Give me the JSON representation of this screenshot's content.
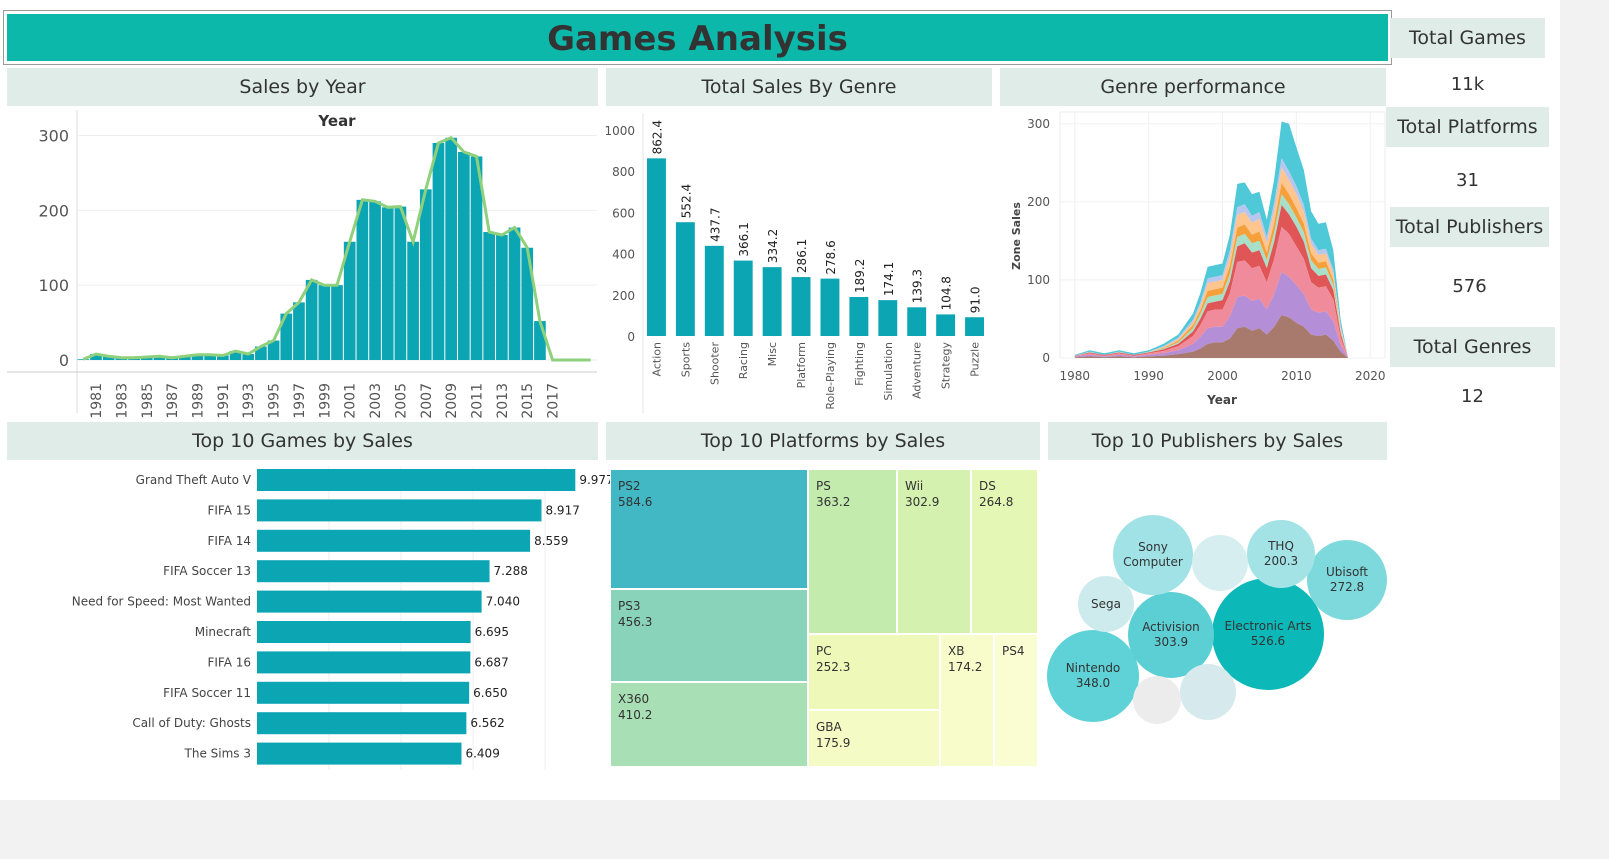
{
  "title": "Games Analysis",
  "kpis": [
    {
      "label": "Total Games",
      "value": "11k"
    },
    {
      "label": "Total Platforms",
      "value": "31"
    },
    {
      "label": "Total Publishers",
      "value": "576"
    },
    {
      "label": "Total Genres",
      "value": "12"
    }
  ],
  "colors": {
    "teal": "#0ca5b4",
    "line": "#8fd07c",
    "header": "#0cb8aa",
    "panel": "#dfece8"
  },
  "chart_data": [
    {
      "id": "sales_by_year",
      "type": "bar",
      "title": "Sales by Year",
      "header": "Year",
      "years": [
        1980,
        1981,
        1982,
        1983,
        1984,
        1985,
        1986,
        1987,
        1988,
        1989,
        1990,
        1991,
        1992,
        1993,
        1994,
        1995,
        1996,
        1997,
        1998,
        1999,
        2000,
        2001,
        2002,
        2003,
        2004,
        2005,
        2006,
        2007,
        2008,
        2009,
        2010,
        2011,
        2012,
        2013,
        2014,
        2015,
        2016,
        2017,
        2018,
        2019,
        2020
      ],
      "values": [
        1,
        8,
        5,
        3,
        3,
        4,
        5,
        3,
        5,
        7,
        7,
        6,
        12,
        8,
        18,
        26,
        62,
        77,
        107,
        100,
        100,
        158,
        214,
        212,
        204,
        205,
        158,
        228,
        290,
        297,
        278,
        272,
        171,
        167,
        177,
        150,
        52,
        0,
        0,
        0,
        0
      ],
      "tick_labels": [
        "1981",
        "1983",
        "1985",
        "1987",
        "1989",
        "1991",
        "1993",
        "1995",
        "1997",
        "1999",
        "2001",
        "2003",
        "2005",
        "2007",
        "2009",
        "2011",
        "2013",
        "2015",
        "2017"
      ],
      "y_ticks": [
        "0",
        "100",
        "200",
        "300"
      ],
      "ylim": [
        0,
        310
      ]
    },
    {
      "id": "sales_by_genre",
      "type": "bar",
      "title": "Total Sales By Genre",
      "categories": [
        "Action",
        "Sports",
        "Shooter",
        "Racing",
        "Misc",
        "Platform",
        "Role-Playing",
        "Fighting",
        "Simulation",
        "Adventure",
        "Strategy",
        "Puzzle"
      ],
      "values": [
        862.4,
        552.4,
        437.7,
        366.1,
        334.2,
        286.1,
        278.6,
        189.2,
        174.1,
        139.3,
        104.8,
        91.0
      ],
      "labels": [
        "862.4",
        "552.4",
        "437.7",
        "366.1",
        "334.2",
        "286.1",
        "278.6",
        "189.2",
        "174.1",
        "139.3",
        "104.8",
        "91.0"
      ],
      "y_ticks": [
        "0",
        "200",
        "400",
        "600",
        "800",
        "1000"
      ],
      "ylim": [
        0,
        1000
      ]
    },
    {
      "id": "genre_performance",
      "type": "area",
      "title": "Genre performance",
      "xlabel": "Year",
      "ylabel": "Zone Sales",
      "x_ticks": [
        "1980",
        "1990",
        "2000",
        "2010",
        "2020"
      ],
      "y_ticks": [
        "0",
        "100",
        "200",
        "300"
      ],
      "xlim": [
        1978,
        2022
      ],
      "ylim": [
        0,
        310
      ],
      "years": [
        1980,
        1982,
        1984,
        1986,
        1988,
        1990,
        1992,
        1994,
        1996,
        1997,
        1998,
        1999,
        2000,
        2001,
        2002,
        2003,
        2004,
        2005,
        2006,
        2007,
        2008,
        2009,
        2010,
        2011,
        2012,
        2013,
        2014,
        2015,
        2016,
        2017
      ],
      "series": [
        {
          "color": "#a87a6e",
          "values": [
            1,
            2,
            1,
            2,
            1,
            2,
            3,
            5,
            8,
            12,
            18,
            20,
            20,
            25,
            38,
            40,
            35,
            38,
            30,
            40,
            55,
            52,
            45,
            40,
            30,
            28,
            30,
            22,
            8,
            0
          ]
        },
        {
          "color": "#b48ed6",
          "values": [
            1,
            2,
            1,
            2,
            1,
            2,
            3,
            5,
            10,
            15,
            20,
            20,
            20,
            28,
            40,
            40,
            38,
            38,
            32,
            42,
            55,
            52,
            48,
            42,
            32,
            30,
            30,
            25,
            8,
            0
          ]
        },
        {
          "color": "#f08b9b",
          "values": [
            1,
            2,
            1,
            2,
            1,
            2,
            3,
            5,
            10,
            15,
            22,
            22,
            22,
            30,
            45,
            45,
            42,
            42,
            35,
            45,
            58,
            55,
            50,
            45,
            35,
            32,
            32,
            28,
            10,
            0
          ]
        },
        {
          "color": "#e05555",
          "values": [
            0,
            1,
            1,
            1,
            1,
            1,
            2,
            3,
            6,
            8,
            10,
            10,
            12,
            15,
            20,
            22,
            20,
            20,
            18,
            22,
            28,
            25,
            25,
            22,
            18,
            15,
            15,
            12,
            5,
            0
          ]
        },
        {
          "color": "#a8dfc8",
          "values": [
            0,
            1,
            0,
            1,
            0,
            1,
            1,
            2,
            4,
            6,
            8,
            8,
            8,
            10,
            12,
            12,
            12,
            12,
            10,
            12,
            14,
            13,
            12,
            12,
            10,
            9,
            9,
            7,
            3,
            0
          ]
        },
        {
          "color": "#f5a03a",
          "values": [
            0,
            0,
            0,
            0,
            0,
            0,
            1,
            2,
            4,
            5,
            8,
            8,
            8,
            10,
            12,
            12,
            11,
            12,
            10,
            12,
            14,
            13,
            12,
            11,
            9,
            8,
            8,
            6,
            2,
            0
          ]
        },
        {
          "color": "#ffc58f",
          "values": [
            0,
            0,
            0,
            0,
            0,
            0,
            1,
            2,
            4,
            6,
            10,
            10,
            10,
            12,
            16,
            16,
            15,
            16,
            12,
            16,
            20,
            18,
            18,
            15,
            12,
            10,
            10,
            8,
            3,
            0
          ]
        },
        {
          "color": "#b7c6ee",
          "values": [
            0,
            0,
            0,
            0,
            0,
            0,
            1,
            2,
            3,
            4,
            6,
            6,
            6,
            8,
            10,
            10,
            9,
            9,
            8,
            10,
            12,
            11,
            10,
            9,
            7,
            6,
            6,
            5,
            2,
            0
          ]
        },
        {
          "color": "#4fc8d8",
          "values": [
            1,
            2,
            2,
            2,
            2,
            2,
            3,
            4,
            8,
            12,
            15,
            15,
            15,
            20,
            30,
            28,
            28,
            26,
            22,
            30,
            47,
            61,
            50,
            45,
            35,
            34,
            34,
            25,
            8,
            0
          ]
        }
      ]
    },
    {
      "id": "top10_games",
      "type": "bar",
      "title": "Top 10 Games by Sales",
      "categories": [
        "Grand Theft Auto V",
        "FIFA 15",
        "FIFA 14",
        "FIFA Soccer 13",
        "Need for Speed: Most Wanted",
        "Minecraft",
        "FIFA 16",
        "FIFA Soccer 11",
        "Call of Duty: Ghosts",
        "The Sims 3"
      ],
      "values": [
        9.977,
        8.917,
        8.559,
        7.288,
        7.04,
        6.695,
        6.687,
        6.65,
        6.562,
        6.409
      ],
      "labels": [
        "9.977",
        "8.917",
        "8.559",
        "7.288",
        "7.040",
        "6.695",
        "6.687",
        "6.650",
        "6.562",
        "6.409"
      ],
      "xlim": [
        0,
        10.5
      ]
    },
    {
      "id": "top10_platforms",
      "type": "treemap",
      "title": "Top 10 Platforms by Sales",
      "items": [
        {
          "name": "PS2",
          "value": "584.6",
          "color": "#43b8c5"
        },
        {
          "name": "PS3",
          "value": "456.3",
          "color": "#8ad3bb"
        },
        {
          "name": "X360",
          "value": "410.2",
          "color": "#a8dfb4"
        },
        {
          "name": "PS",
          "value": "363.2",
          "color": "#c4ebae"
        },
        {
          "name": "Wii",
          "value": "302.9",
          "color": "#d4f1b0"
        },
        {
          "name": "DS",
          "value": "264.8",
          "color": "#e5f7b4"
        },
        {
          "name": "PC",
          "value": "252.3",
          "color": "#eef8b8"
        },
        {
          "name": "GBA",
          "value": "175.9",
          "color": "#f5fbc4"
        },
        {
          "name": "XB",
          "value": "174.2",
          "color": "#f8fcca"
        },
        {
          "name": "PS4",
          "value": "",
          "color": "#fafdd2"
        }
      ]
    },
    {
      "id": "top10_publishers",
      "type": "bubble",
      "title": "Top 10 Publishers by Sales",
      "items": [
        {
          "name": "Electronic Arts",
          "value": "526.6",
          "color": "#0cb8b8"
        },
        {
          "name": "Nintendo",
          "value": "348.0",
          "color": "#5ed2d6"
        },
        {
          "name": "Activision",
          "value": "303.9",
          "color": "#5ccfd4"
        },
        {
          "name": "Ubisoft",
          "value": "272.8",
          "color": "#7ed9dd"
        },
        {
          "name": "THQ",
          "value": "200.3",
          "color": "#a3e3e6"
        },
        {
          "name": "Sony Computer",
          "value": "",
          "color": "#a0e2e5"
        },
        {
          "name": "Sega",
          "value": "",
          "color": "#cdebed"
        },
        {
          "name": "",
          "value": "",
          "color": "#d6eef0"
        },
        {
          "name": "",
          "value": "",
          "color": "#d6e9ec"
        },
        {
          "name": "",
          "value": "",
          "color": "#ececec"
        }
      ]
    }
  ]
}
